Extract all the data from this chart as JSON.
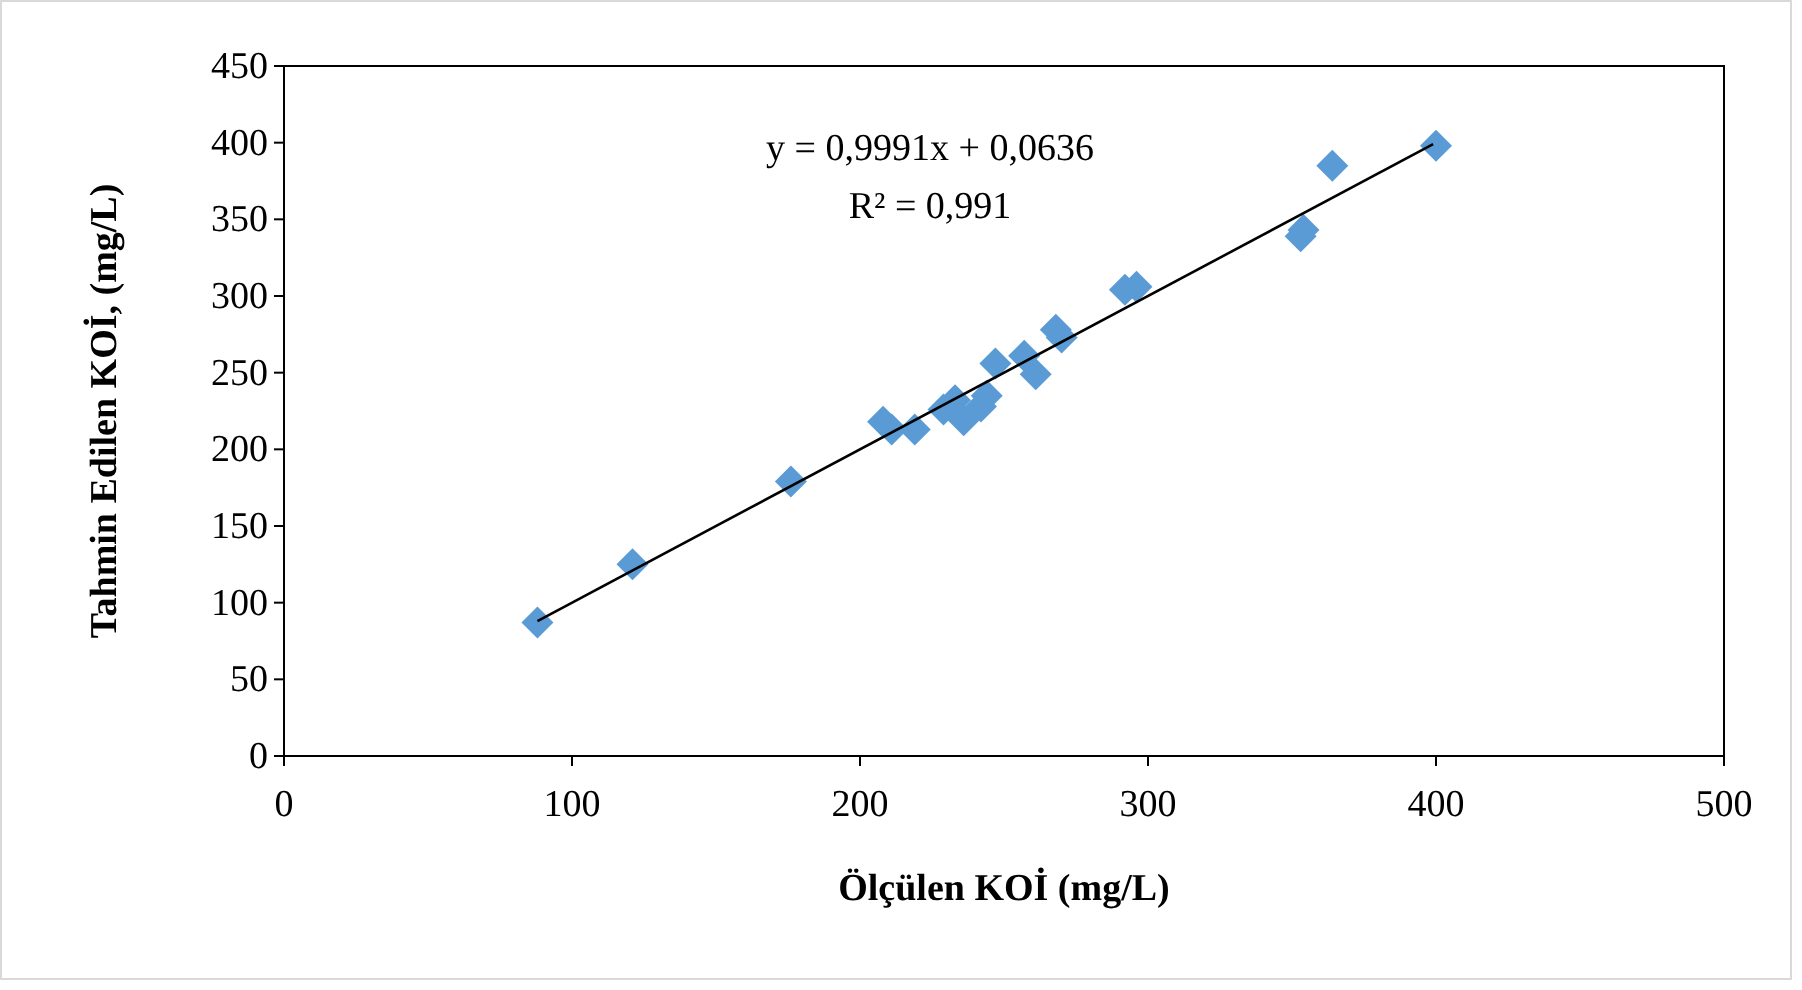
{
  "chart_data": {
    "type": "scatter",
    "xlabel": "Ölçülen KOİ (mg/L)",
    "ylabel": "Tahmin Edilen KOİ, (mg/L)",
    "xlim": [
      0,
      500
    ],
    "ylim": [
      0,
      450
    ],
    "xticks": [
      0,
      100,
      200,
      300,
      400,
      500
    ],
    "yticks": [
      0,
      50,
      100,
      150,
      200,
      250,
      300,
      350,
      400,
      450
    ],
    "grid": false,
    "marker": "diamond",
    "annotations": [
      "y = 0,9991x + 0,0636",
      "R² = 0,991"
    ],
    "series": [
      {
        "color": "#5b9bd5",
        "x": [
          88,
          121,
          176,
          208,
          211,
          219,
          229,
          233,
          236,
          242,
          244,
          247,
          257,
          261,
          268,
          270,
          292,
          296,
          353,
          354,
          364,
          400
        ],
        "values": [
          87,
          125,
          179,
          218,
          213,
          213,
          226,
          232,
          219,
          228,
          235,
          256,
          261,
          249,
          278,
          273,
          304,
          306,
          339,
          343,
          385,
          398
        ]
      },
      {
        "type": "line",
        "color": "#000000",
        "marker": "none",
        "x": [
          88,
          399
        ],
        "values": [
          88,
          399
        ]
      }
    ]
  }
}
